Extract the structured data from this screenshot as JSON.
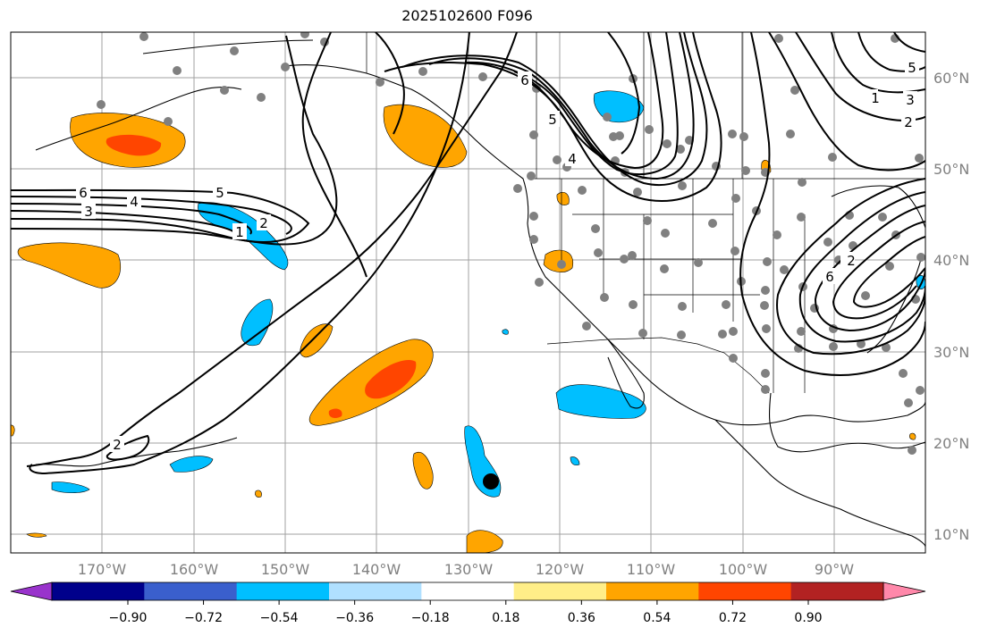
{
  "title": "2025102600 F096",
  "lon_ticks": [
    "170°W",
    "160°W",
    "150°W",
    "140°W",
    "130°W",
    "120°W",
    "110°W",
    "100°W",
    "90°W"
  ],
  "lat_ticks": [
    "60°N",
    "50°N",
    "40°N",
    "30°N",
    "20°N",
    "10°N"
  ],
  "colorbar": {
    "labels": [
      "−0.90",
      "−0.72",
      "−0.54",
      "−0.36",
      "−0.18",
      "0.18",
      "0.36",
      "0.54",
      "0.72",
      "0.90"
    ],
    "under_color": "#9933cc",
    "over_color": "#ff88aa",
    "colors": [
      "#00008b",
      "#3a5fcd",
      "#00bfff",
      "#b0e0ff",
      "#ffffff",
      "#ffee88",
      "#ffa500",
      "#ff4500",
      "#b22222"
    ]
  },
  "map_extent": {
    "lon": [
      -180,
      -80
    ],
    "lat": [
      7,
      65
    ]
  },
  "contour_labels": [
    "6",
    "4",
    "5",
    "3",
    "2",
    "1",
    "2",
    "6",
    "5",
    "4",
    "3",
    "2",
    "5",
    "6",
    "2",
    "1"
  ],
  "colors": {
    "land_outline": "#000000",
    "gridline": "#a0a0a0",
    "positive_fill": "#ffa500",
    "positive_strong": "#ff4500",
    "negative_fill": "#00bfff",
    "station_marker": "#808080"
  }
}
